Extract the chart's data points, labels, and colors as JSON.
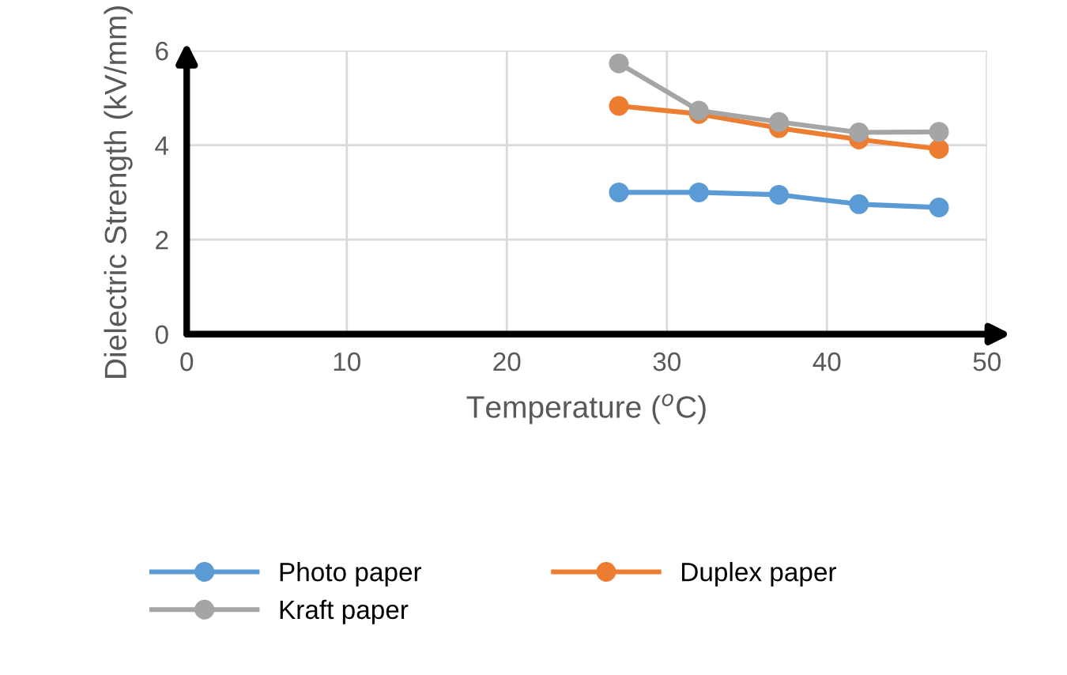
{
  "chart_data": {
    "type": "line",
    "xlabel": "Temperature ($^{o}$C)",
    "ylabel": "Dielectric Strength (kV/mm)",
    "x": [
      27,
      32,
      37,
      42,
      47
    ],
    "series": [
      {
        "name": "Photo paper",
        "color": "#5b9bd5",
        "values": [
          3.0,
          3.0,
          2.95,
          2.75,
          2.68
        ]
      },
      {
        "name": "Duplex paper",
        "color": "#ed7d31",
        "values": [
          4.83,
          4.66,
          4.36,
          4.12,
          3.92
        ]
      },
      {
        "name": "Kraft paper",
        "color": "#a5a5a5",
        "values": [
          5.73,
          4.73,
          4.49,
          4.27,
          4.28
        ]
      }
    ],
    "xlim": [
      0,
      50
    ],
    "xticks": [
      0,
      10,
      20,
      30,
      40,
      50
    ],
    "ylim": [
      0,
      6
    ],
    "yticks": [
      0,
      2,
      4,
      6
    ],
    "grid": true,
    "legend": "bottom",
    "marker": "circle",
    "line_style": "solid"
  }
}
